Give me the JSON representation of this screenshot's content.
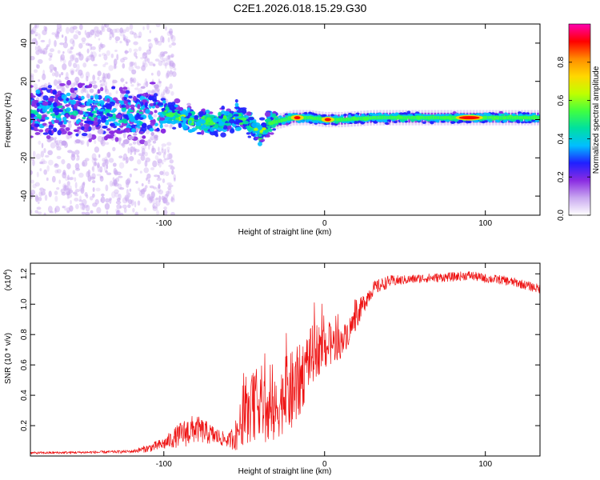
{
  "title": "C2E1.2026.018.15.29.G30",
  "chart_data": [
    {
      "type": "heatmap",
      "xlabel": "Height of straight line (km)",
      "ylabel": "Frequency (Hz)",
      "xlim": [
        -183,
        134
      ],
      "ylim": [
        -50,
        50
      ],
      "xticks": [
        -100,
        0,
        100
      ],
      "yticks": [
        -40,
        -20,
        0,
        20,
        40
      ],
      "ridge": [
        [
          -183,
          4
        ],
        [
          -160,
          5
        ],
        [
          -140,
          4
        ],
        [
          -120,
          3
        ],
        [
          -110,
          3
        ],
        [
          -100,
          4
        ],
        [
          -90,
          1
        ],
        [
          -80,
          -1
        ],
        [
          -70,
          -2
        ],
        [
          -62,
          -1
        ],
        [
          -55,
          2
        ],
        [
          -50,
          0
        ],
        [
          -45,
          -3
        ],
        [
          -40,
          -8
        ],
        [
          -35,
          -2
        ],
        [
          -30,
          -1
        ],
        [
          -20,
          1
        ],
        [
          -10,
          1
        ],
        [
          0,
          0
        ],
        [
          10,
          0
        ],
        [
          30,
          1
        ],
        [
          60,
          1
        ],
        [
          90,
          1
        ],
        [
          110,
          1
        ],
        [
          134,
          1
        ]
      ],
      "hotspots": [
        [
          -17,
          1
        ],
        [
          2,
          0
        ],
        [
          90,
          1
        ]
      ],
      "colorbar": {
        "label": "Normalized spectral amplitude",
        "range": [
          0,
          1
        ],
        "ticks": [
          "0.0",
          "0.2",
          "0.4",
          "0.6",
          "0.8"
        ],
        "colors": [
          "#ffffff",
          "#c9a8f0",
          "#8a2be2",
          "#2020ff",
          "#00bfff",
          "#00e0a0",
          "#40ff40",
          "#c0ff00",
          "#ffd700",
          "#ff8c00",
          "#ff0000",
          "#ff00b0"
        ]
      }
    },
    {
      "type": "line",
      "xlabel": "Height of straight line (km)",
      "ylabel": "SNR (10 * v/v)",
      "yscale_label": "(x10",
      "yscale_exp": "4",
      "xlim": [
        -183,
        134
      ],
      "ylim": [
        0,
        1.27
      ],
      "xticks": [
        -100,
        0,
        100
      ],
      "yticks": [
        0.2,
        0.4,
        0.6,
        0.8,
        1.0,
        1.2
      ],
      "series": [
        {
          "name": "SNR",
          "color": "#ee1111",
          "base": [
            [
              -183,
              0.02
            ],
            [
              -140,
              0.025
            ],
            [
              -120,
              0.03
            ],
            [
              -110,
              0.05
            ],
            [
              -100,
              0.08
            ],
            [
              -90,
              0.14
            ],
            [
              -80,
              0.18
            ],
            [
              -70,
              0.14
            ],
            [
              -60,
              0.1
            ],
            [
              -55,
              0.14
            ],
            [
              -50,
              0.26
            ],
            [
              -45,
              0.3
            ],
            [
              -40,
              0.38
            ],
            [
              -35,
              0.25
            ],
            [
              -30,
              0.3
            ],
            [
              -25,
              0.4
            ],
            [
              -20,
              0.42
            ],
            [
              -15,
              0.5
            ],
            [
              -10,
              0.64
            ],
            [
              -5,
              0.7
            ],
            [
              0,
              0.72
            ],
            [
              5,
              0.74
            ],
            [
              10,
              0.74
            ],
            [
              15,
              0.82
            ],
            [
              20,
              0.92
            ],
            [
              25,
              1.02
            ],
            [
              30,
              1.1
            ],
            [
              40,
              1.15
            ],
            [
              60,
              1.17
            ],
            [
              80,
              1.18
            ],
            [
              90,
              1.19
            ],
            [
              100,
              1.17
            ],
            [
              110,
              1.16
            ],
            [
              120,
              1.14
            ],
            [
              134,
              1.1
            ]
          ],
          "noise": [
            [
              -183,
              0.008
            ],
            [
              -120,
              0.01
            ],
            [
              -100,
              0.04
            ],
            [
              -85,
              0.1
            ],
            [
              -75,
              0.08
            ],
            [
              -60,
              0.04
            ],
            [
              -50,
              0.18
            ],
            [
              -38,
              0.25
            ],
            [
              -30,
              0.2
            ],
            [
              -20,
              0.28
            ],
            [
              -10,
              0.2
            ],
            [
              0,
              0.16
            ],
            [
              10,
              0.1
            ],
            [
              20,
              0.08
            ],
            [
              30,
              0.05
            ],
            [
              50,
              0.03
            ],
            [
              134,
              0.03
            ]
          ]
        }
      ]
    }
  ]
}
